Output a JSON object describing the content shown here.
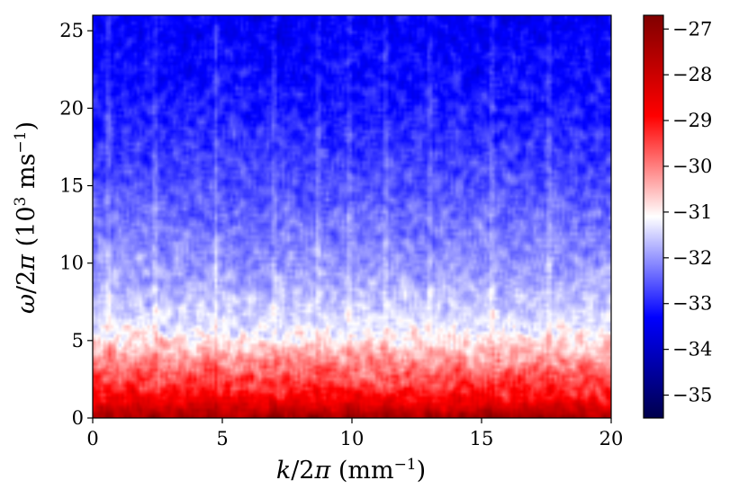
{
  "chart_data": {
    "type": "heatmap",
    "title": "",
    "xlabel": {
      "var": "k",
      "den": "/2",
      "pi": "π",
      "unit_open": " (mm",
      "unit_exp": "−1",
      "unit_close": ")"
    },
    "ylabel": {
      "var": "ω",
      "den": "/2",
      "pi": "π",
      "unit_open": " (10",
      "unit_exp1": "3",
      "unit_mid": " ms",
      "unit_exp2": "−1",
      "unit_close": ")"
    },
    "xlim": [
      0,
      20
    ],
    "ylim": [
      0,
      26
    ],
    "xticks": [
      0,
      5,
      10,
      15,
      20
    ],
    "yticks": [
      0,
      5,
      10,
      15,
      20,
      25
    ],
    "colorbar": {
      "ticks": [
        "−27",
        "−28",
        "−29",
        "−30",
        "−31",
        "−32",
        "−33",
        "−34",
        "−35"
      ],
      "tick_values": [
        -27,
        -28,
        -29,
        -30,
        -31,
        -32,
        -33,
        -34,
        -35
      ],
      "range": [
        -35.5,
        -26.7
      ],
      "colormap": "seismic"
    },
    "field": {
      "description_units": "log power (colorbar units)",
      "mean_by_omega": [
        {
          "omega": 0,
          "value": -27.3
        },
        {
          "omega": 1,
          "value": -28.6
        },
        {
          "omega": 2,
          "value": -29.3
        },
        {
          "omega": 3,
          "value": -29.8
        },
        {
          "omega": 4,
          "value": -30.3
        },
        {
          "omega": 5,
          "value": -30.9
        },
        {
          "omega": 6,
          "value": -31.3
        },
        {
          "omega": 8,
          "value": -31.7
        },
        {
          "omega": 10,
          "value": -32.0
        },
        {
          "omega": 14,
          "value": -32.5
        },
        {
          "omega": 18,
          "value": -32.9
        },
        {
          "omega": 22,
          "value": -33.2
        },
        {
          "omega": 26,
          "value": -33.4
        }
      ],
      "bright_k_lines": [
        0.6,
        2.4,
        4.75,
        7.0,
        8.7,
        9.9,
        11.3,
        13.0,
        15.4,
        17.6
      ]
    }
  }
}
